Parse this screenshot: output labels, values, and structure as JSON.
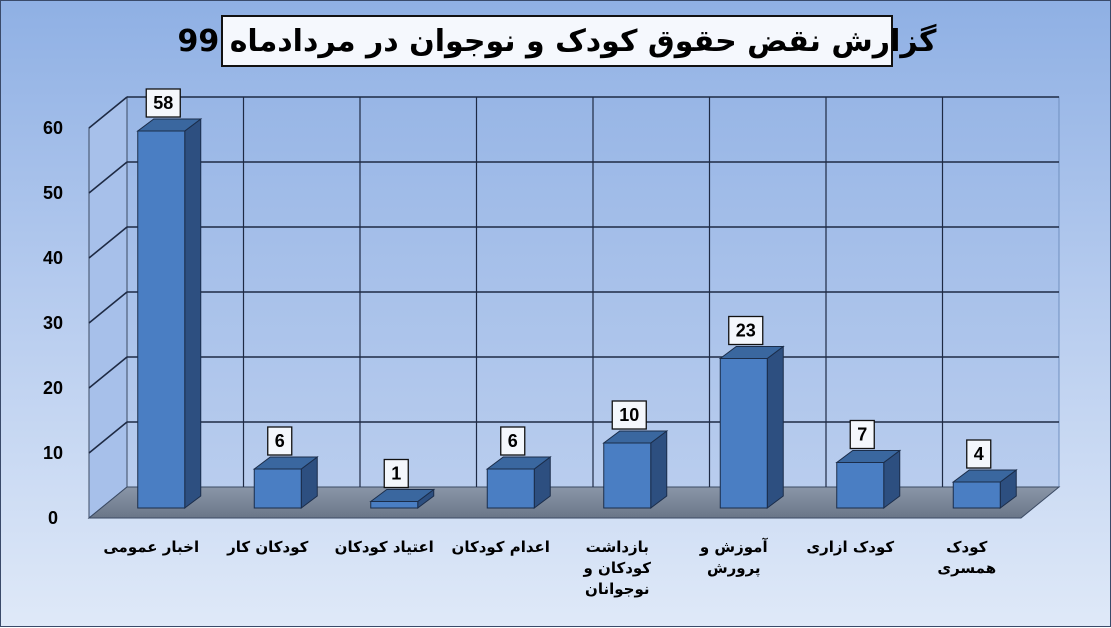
{
  "chart_data": {
    "type": "bar",
    "title": "گزارش نقض حقوق کودک و نوجوان در مردادماه 99",
    "categories": [
      "اخبار عمومی",
      "کودکان کار",
      "اعتیاد کودکان",
      "اعدام کودکان",
      "بازداشت کودکان و نوجوانان",
      "آموزش و پرورش",
      "کودک ازاری",
      "کودک همسری"
    ],
    "category_lines": [
      [
        "اخبار عمومی"
      ],
      [
        "کودکان کار"
      ],
      [
        "اعتیاد کودکان"
      ],
      [
        "اعدام کودکان"
      ],
      [
        "بازداشت",
        "کودکان و",
        "نوجوانان"
      ],
      [
        "آموزش و",
        "پرورش"
      ],
      [
        "کودک ازاری"
      ],
      [
        "کودک",
        "همسری"
      ]
    ],
    "values": [
      58,
      6,
      1,
      6,
      10,
      23,
      7,
      4
    ],
    "y_ticks": [
      0,
      10,
      20,
      30,
      40,
      50,
      60
    ],
    "ylim": [
      0,
      60
    ],
    "grid": true,
    "legend": "none",
    "bar_color": "#4a7ec3",
    "bar_side_color": "#2d4f80",
    "bar_top_color": "#3a679f"
  }
}
